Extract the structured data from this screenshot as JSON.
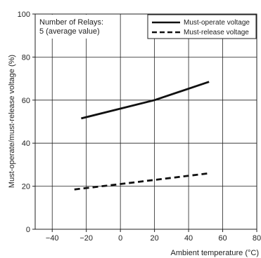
{
  "chart_data": {
    "type": "line",
    "title": "",
    "xlabel": "Ambient temperature (°C)",
    "ylabel": "Must-operate/must-release voltage (%)",
    "xlim": [
      -50,
      80
    ],
    "ylim": [
      0,
      100
    ],
    "x_ticks": [
      "−40",
      "−20",
      "0",
      "20",
      "40",
      "60",
      "80"
    ],
    "y_ticks": [
      "0",
      "20",
      "40",
      "60",
      "80",
      "100"
    ],
    "grid": true,
    "annotation": {
      "line1": "Number of Relays:",
      "line2": "5 (average value)"
    },
    "legend_position": "top-right",
    "series": [
      {
        "name": "Must-operate voltage",
        "style": "solid",
        "x": [
          -23,
          20,
          52
        ],
        "y": [
          51.5,
          60,
          68.5
        ]
      },
      {
        "name": "Must-release voltage",
        "style": "dashed",
        "x": [
          -27,
          0,
          52
        ],
        "y": [
          18.5,
          21,
          26
        ]
      }
    ]
  }
}
